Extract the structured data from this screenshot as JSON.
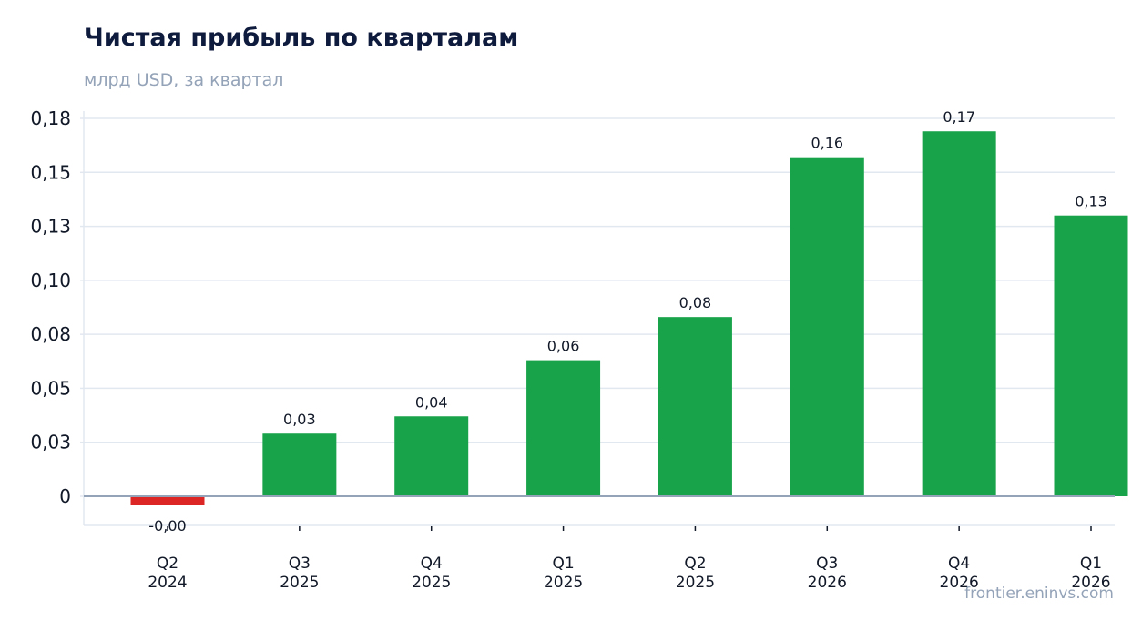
{
  "header": {
    "title": "Чистая прибыль по кварталам",
    "subtitle": "млрд USD, за квартал"
  },
  "source": "frontier.eninvs.com",
  "colors": {
    "positive": "#18a34a",
    "negative": "#dc2626",
    "grid": "#e2e8f0",
    "baseline": "#94a3b8"
  },
  "chart_data": {
    "type": "bar",
    "title": "Чистая прибыль по кварталам",
    "subtitle": "млрд USD, за квартал",
    "categories": [
      [
        "Q2",
        "2024"
      ],
      [
        "Q3",
        "2025"
      ],
      [
        "Q4",
        "2025"
      ],
      [
        "Q1",
        "2025"
      ],
      [
        "Q2",
        "2025"
      ],
      [
        "Q3",
        "2026"
      ],
      [
        "Q4",
        "2026"
      ],
      [
        "Q1",
        "2026"
      ]
    ],
    "values": [
      -0.004,
      0.029,
      0.037,
      0.063,
      0.083,
      0.157,
      0.169,
      0.13
    ],
    "data_labels": [
      "-0,00",
      "0,03",
      "0,04",
      "0,06",
      "0,08",
      "0,16",
      "0,17",
      "0,13"
    ],
    "yticks": [
      0,
      0.025,
      0.05,
      0.075,
      0.1,
      0.125,
      0.15,
      0.175
    ],
    "ytick_labels": [
      "0",
      "0,03",
      "0,05",
      "0,08",
      "0,10",
      "0,13",
      "0,15",
      "0,18"
    ],
    "ylim": [
      -0.013,
      0.177
    ],
    "grid": true,
    "legend": "none"
  }
}
